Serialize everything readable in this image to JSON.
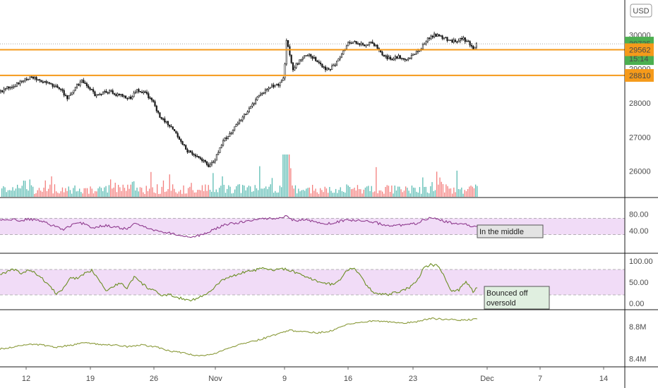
{
  "currency": "USD",
  "colors": {
    "up": "#26a69a",
    "down": "#ef5350",
    "candle": "#1a1a1a",
    "orange": "#f59a1a",
    "rsi": "#8e3a8e",
    "stoch": "#6b8e23",
    "obv": "#8a9a3a",
    "band": "#f1dcf7",
    "tag_green": "#4caf50"
  },
  "price_tags": {
    "last": "29735",
    "countdown": "15:14",
    "level1": "29562",
    "level2": "28810"
  },
  "chart_data": [
    {
      "type": "candlestick",
      "ylim": [
        25600,
        30400
      ],
      "y_ticks": [
        "30000",
        "29000",
        "28000",
        "27000",
        "26000"
      ],
      "x_ticks": [
        "12",
        "19",
        "26",
        "Nov",
        "9",
        "16",
        "23",
        "Dec",
        "7",
        "14"
      ],
      "horizontal_levels": [
        29562,
        28810
      ],
      "close_path": [
        [
          0,
          28330
        ],
        [
          10,
          28450
        ],
        [
          20,
          28500
        ],
        [
          30,
          28620
        ],
        [
          45,
          28780
        ],
        [
          55,
          28680
        ],
        [
          65,
          28620
        ],
        [
          75,
          28520
        ],
        [
          85,
          28420
        ],
        [
          95,
          28150
        ],
        [
          105,
          28400
        ],
        [
          115,
          28650
        ],
        [
          125,
          28500
        ],
        [
          135,
          28200
        ],
        [
          145,
          28320
        ],
        [
          155,
          28350
        ],
        [
          165,
          28250
        ],
        [
          175,
          28200
        ],
        [
          185,
          28150
        ],
        [
          195,
          28380
        ],
        [
          205,
          28300
        ],
        [
          215,
          28100
        ],
        [
          225,
          27650
        ],
        [
          235,
          27450
        ],
        [
          245,
          27250
        ],
        [
          255,
          26900
        ],
        [
          265,
          26600
        ],
        [
          275,
          26500
        ],
        [
          285,
          26350
        ],
        [
          295,
          26150
        ],
        [
          305,
          26350
        ],
        [
          315,
          26850
        ],
        [
          325,
          27100
        ],
        [
          335,
          27350
        ],
        [
          345,
          27600
        ],
        [
          355,
          27900
        ],
        [
          365,
          28150
        ],
        [
          375,
          28350
        ],
        [
          385,
          28500
        ],
        [
          395,
          28550
        ],
        [
          402,
          28750
        ],
        [
          406,
          29850
        ],
        [
          410,
          29450
        ],
        [
          415,
          29000
        ],
        [
          425,
          29250
        ],
        [
          435,
          29450
        ],
        [
          445,
          29300
        ],
        [
          455,
          29100
        ],
        [
          465,
          28950
        ],
        [
          475,
          29150
        ],
        [
          485,
          29500
        ],
        [
          495,
          29800
        ],
        [
          505,
          29750
        ],
        [
          515,
          29700
        ],
        [
          525,
          29800
        ],
        [
          535,
          29600
        ],
        [
          545,
          29350
        ],
        [
          555,
          29300
        ],
        [
          565,
          29350
        ],
        [
          575,
          29300
        ],
        [
          585,
          29400
        ],
        [
          595,
          29550
        ],
        [
          605,
          29850
        ],
        [
          615,
          30000
        ],
        [
          625,
          29950
        ],
        [
          635,
          29850
        ],
        [
          645,
          29800
        ],
        [
          655,
          29900
        ],
        [
          665,
          29750
        ],
        [
          670,
          29600
        ],
        [
          676,
          29735
        ]
      ]
    },
    {
      "type": "line",
      "name": "",
      "ylim": [
        0,
        100
      ],
      "y_ticks": [
        "80.00",
        "40.00"
      ],
      "bands": [
        30,
        70
      ],
      "annotation": "In the middle",
      "points": [
        [
          0,
          65
        ],
        [
          10,
          66
        ],
        [
          20,
          67
        ],
        [
          30,
          64
        ],
        [
          40,
          68
        ],
        [
          50,
          66
        ],
        [
          60,
          62
        ],
        [
          70,
          55
        ],
        [
          80,
          50
        ],
        [
          90,
          42
        ],
        [
          100,
          52
        ],
        [
          110,
          58
        ],
        [
          120,
          57
        ],
        [
          130,
          47
        ],
        [
          140,
          50
        ],
        [
          150,
          52
        ],
        [
          160,
          49
        ],
        [
          170,
          46
        ],
        [
          180,
          44
        ],
        [
          190,
          56
        ],
        [
          200,
          52
        ],
        [
          210,
          47
        ],
        [
          220,
          40
        ],
        [
          230,
          36
        ],
        [
          240,
          34
        ],
        [
          250,
          31
        ],
        [
          260,
          26
        ],
        [
          270,
          25
        ],
        [
          280,
          27
        ],
        [
          290,
          32
        ],
        [
          300,
          40
        ],
        [
          310,
          48
        ],
        [
          320,
          55
        ],
        [
          330,
          57
        ],
        [
          340,
          60
        ],
        [
          350,
          63
        ],
        [
          360,
          66
        ],
        [
          370,
          68
        ],
        [
          380,
          70
        ],
        [
          390,
          70
        ],
        [
          400,
          72
        ],
        [
          406,
          76
        ],
        [
          410,
          68
        ],
        [
          420,
          64
        ],
        [
          430,
          66
        ],
        [
          440,
          64
        ],
        [
          450,
          60
        ],
        [
          460,
          58
        ],
        [
          470,
          56
        ],
        [
          480,
          62
        ],
        [
          490,
          66
        ],
        [
          500,
          65
        ],
        [
          510,
          64
        ],
        [
          520,
          62
        ],
        [
          530,
          60
        ],
        [
          540,
          56
        ],
        [
          550,
          52
        ],
        [
          560,
          52
        ],
        [
          570,
          53
        ],
        [
          580,
          55
        ],
        [
          590,
          57
        ],
        [
          600,
          66
        ],
        [
          610,
          72
        ],
        [
          620,
          70
        ],
        [
          630,
          62
        ],
        [
          640,
          58
        ],
        [
          650,
          56
        ],
        [
          660,
          55
        ],
        [
          670,
          48
        ],
        [
          676,
          50
        ]
      ]
    },
    {
      "type": "line",
      "name": "",
      "ylim": [
        0,
        100
      ],
      "y_ticks": [
        "100.00",
        "50.00",
        "0.00"
      ],
      "bands": [
        20,
        80
      ],
      "annotation": "Bounced off oversold",
      "points": [
        [
          0,
          68
        ],
        [
          10,
          75
        ],
        [
          20,
          80
        ],
        [
          30,
          70
        ],
        [
          40,
          78
        ],
        [
          50,
          72
        ],
        [
          60,
          58
        ],
        [
          70,
          42
        ],
        [
          80,
          22
        ],
        [
          90,
          35
        ],
        [
          100,
          62
        ],
        [
          110,
          58
        ],
        [
          120,
          70
        ],
        [
          130,
          78
        ],
        [
          140,
          58
        ],
        [
          150,
          30
        ],
        [
          160,
          40
        ],
        [
          170,
          48
        ],
        [
          180,
          36
        ],
        [
          190,
          63
        ],
        [
          200,
          48
        ],
        [
          210,
          36
        ],
        [
          220,
          28
        ],
        [
          230,
          18
        ],
        [
          240,
          20
        ],
        [
          250,
          15
        ],
        [
          260,
          10
        ],
        [
          270,
          8
        ],
        [
          280,
          12
        ],
        [
          290,
          20
        ],
        [
          300,
          30
        ],
        [
          310,
          48
        ],
        [
          320,
          60
        ],
        [
          330,
          65
        ],
        [
          340,
          70
        ],
        [
          350,
          76
        ],
        [
          360,
          78
        ],
        [
          370,
          82
        ],
        [
          380,
          80
        ],
        [
          390,
          78
        ],
        [
          400,
          82
        ],
        [
          410,
          78
        ],
        [
          420,
          72
        ],
        [
          430,
          64
        ],
        [
          440,
          58
        ],
        [
          450,
          52
        ],
        [
          460,
          48
        ],
        [
          470,
          45
        ],
        [
          480,
          52
        ],
        [
          490,
          78
        ],
        [
          500,
          84
        ],
        [
          510,
          66
        ],
        [
          520,
          40
        ],
        [
          530,
          26
        ],
        [
          540,
          22
        ],
        [
          550,
          20
        ],
        [
          560,
          26
        ],
        [
          570,
          30
        ],
        [
          580,
          38
        ],
        [
          590,
          52
        ],
        [
          600,
          82
        ],
        [
          610,
          92
        ],
        [
          620,
          88
        ],
        [
          630,
          62
        ],
        [
          640,
          28
        ],
        [
          650,
          32
        ],
        [
          660,
          52
        ],
        [
          670,
          28
        ],
        [
          676,
          38
        ]
      ]
    },
    {
      "type": "line",
      "name": "",
      "y_ticks": [
        "8.8M",
        "8.4M"
      ],
      "points": [
        [
          0,
          8.52
        ],
        [
          20,
          8.55
        ],
        [
          40,
          8.58
        ],
        [
          60,
          8.57
        ],
        [
          80,
          8.54
        ],
        [
          100,
          8.57
        ],
        [
          120,
          8.6
        ],
        [
          140,
          8.58
        ],
        [
          160,
          8.57
        ],
        [
          180,
          8.55
        ],
        [
          200,
          8.57
        ],
        [
          220,
          8.55
        ],
        [
          240,
          8.5
        ],
        [
          260,
          8.47
        ],
        [
          280,
          8.44
        ],
        [
          300,
          8.45
        ],
        [
          320,
          8.52
        ],
        [
          340,
          8.58
        ],
        [
          360,
          8.62
        ],
        [
          380,
          8.67
        ],
        [
          400,
          8.73
        ],
        [
          410,
          8.75
        ],
        [
          430,
          8.74
        ],
        [
          450,
          8.72
        ],
        [
          470,
          8.75
        ],
        [
          490,
          8.82
        ],
        [
          510,
          8.85
        ],
        [
          530,
          8.87
        ],
        [
          550,
          8.86
        ],
        [
          570,
          8.84
        ],
        [
          590,
          8.86
        ],
        [
          610,
          8.9
        ],
        [
          630,
          8.89
        ],
        [
          650,
          8.88
        ],
        [
          676,
          8.89
        ]
      ]
    }
  ]
}
